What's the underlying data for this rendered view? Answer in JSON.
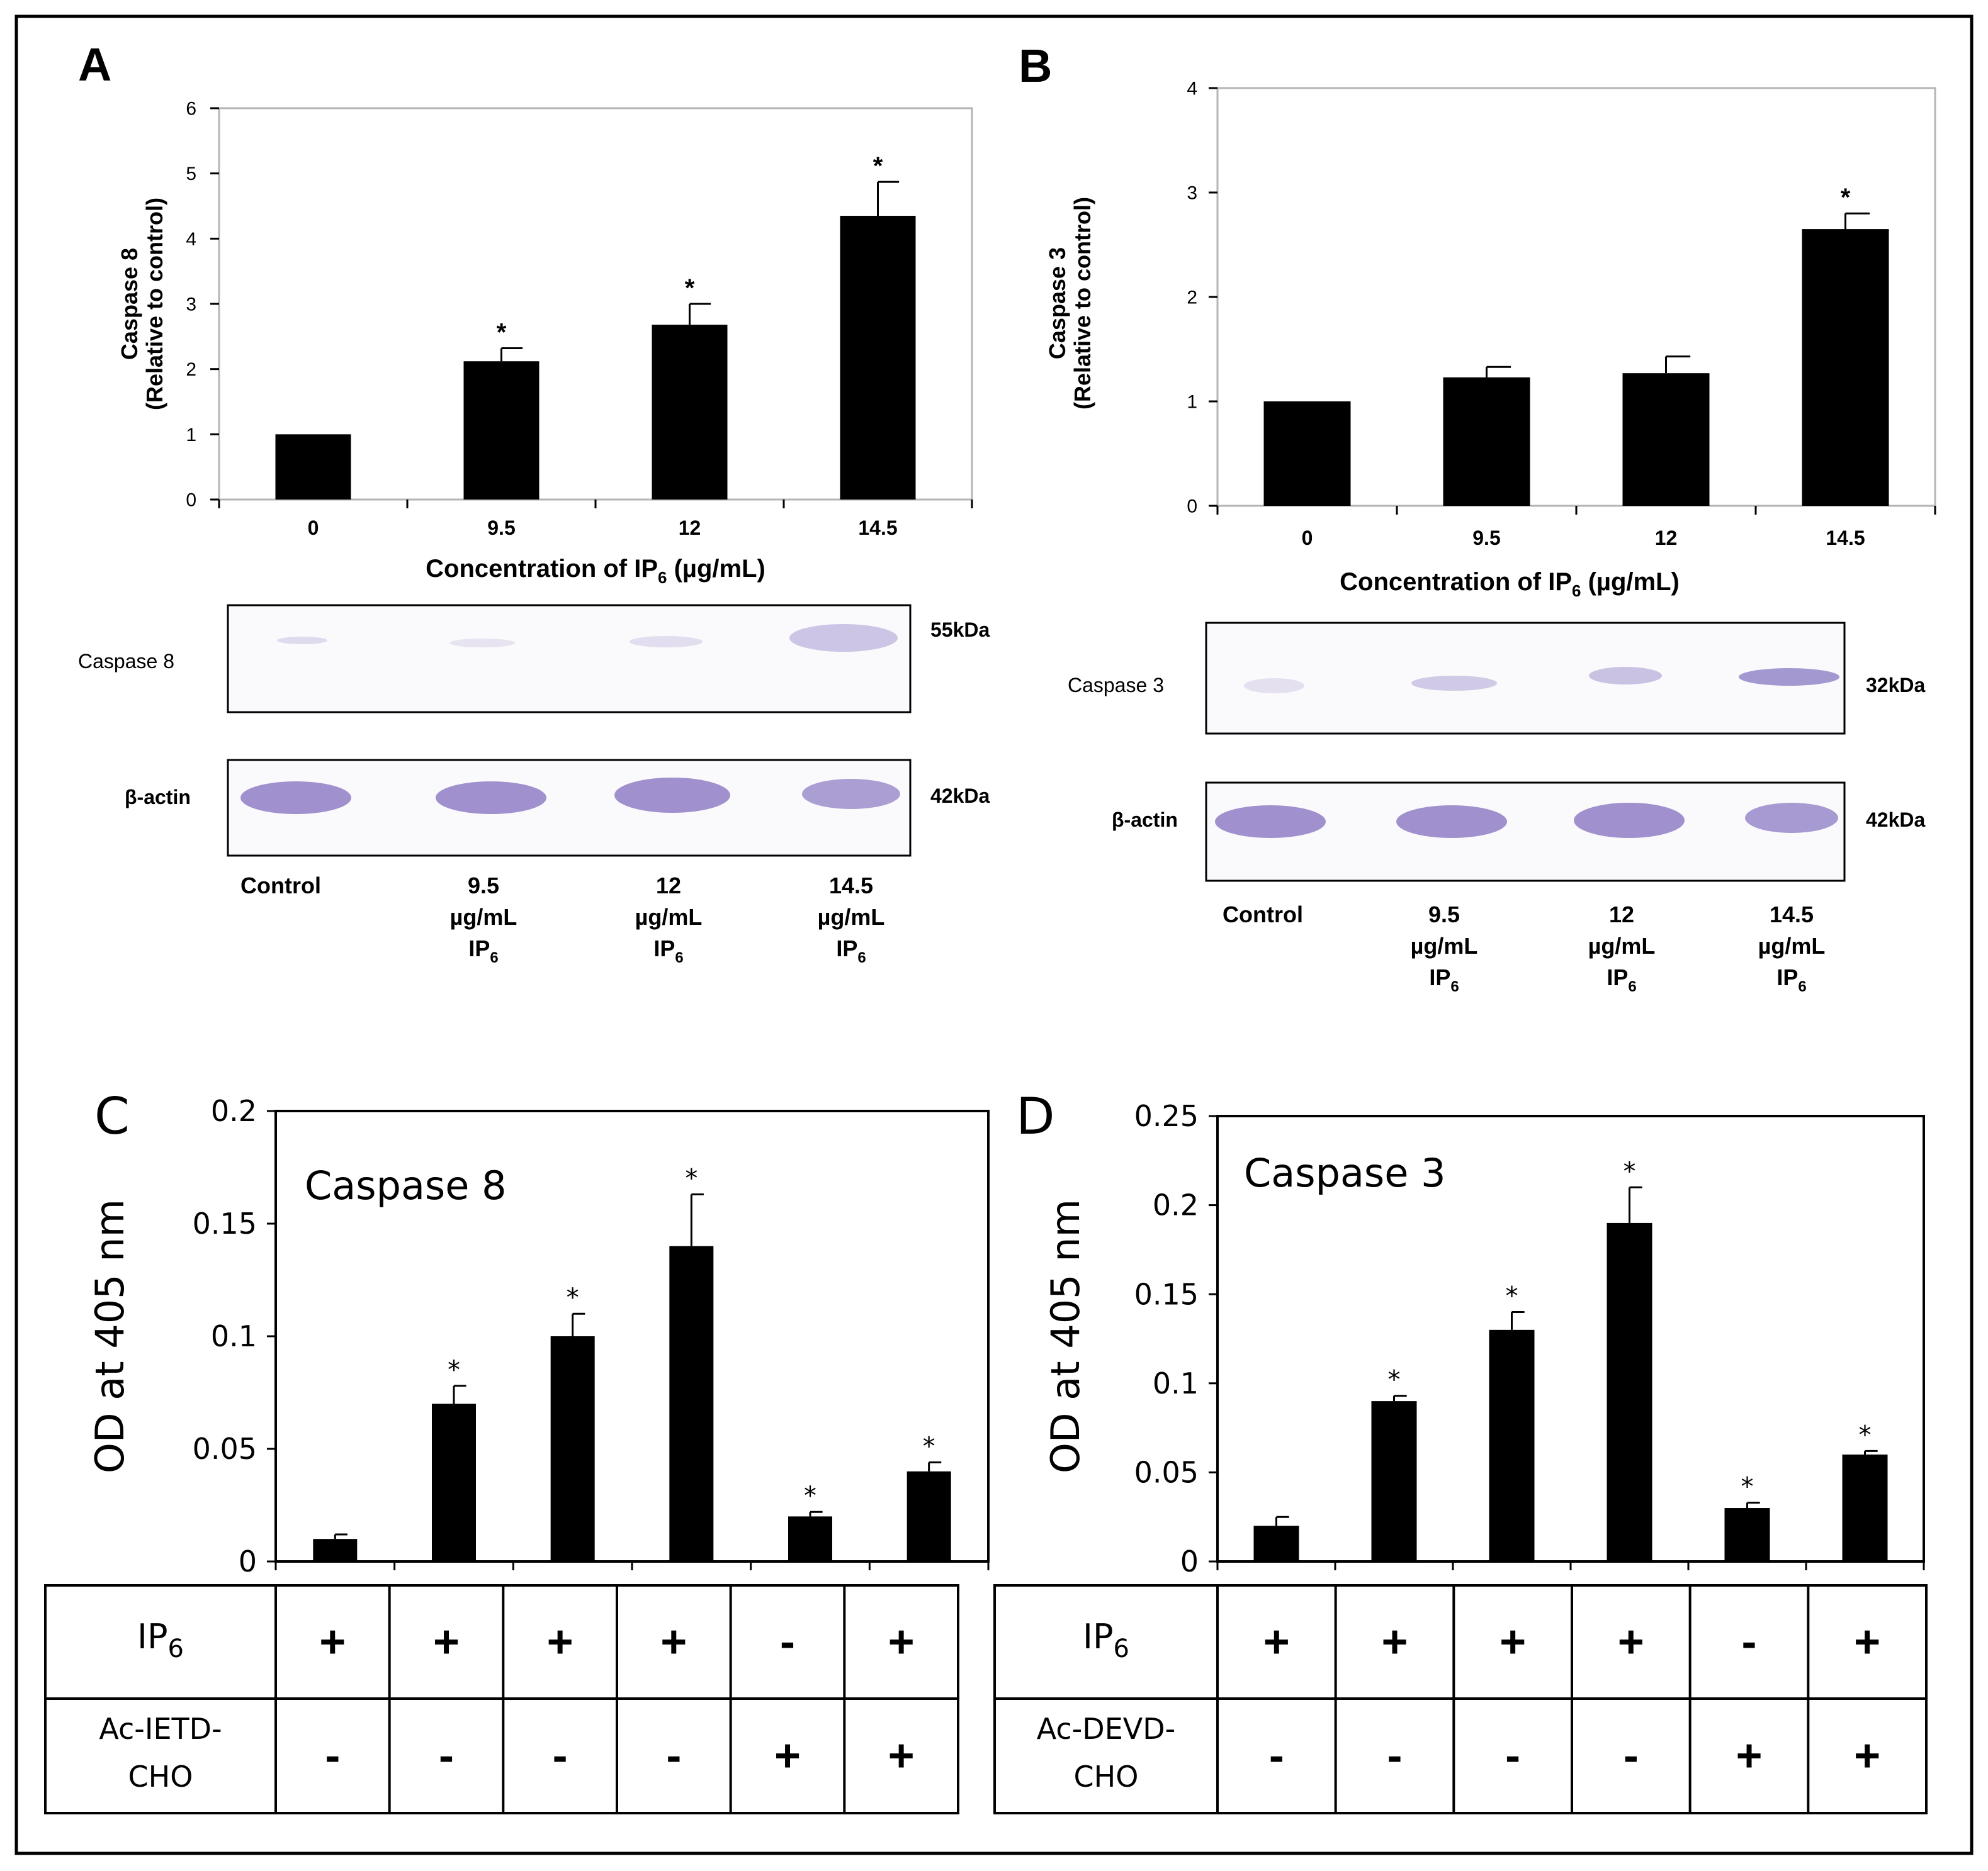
{
  "chart_data": [
    {
      "panel": "A",
      "type": "bar",
      "title": "",
      "xlabel": "Concentration of IP6 (µg/mL)",
      "ylabel": "Caspase 8",
      "ylabel2": "(Relative to control)",
      "categories": [
        "0",
        "9.5",
        "12",
        "14.5"
      ],
      "values": [
        1.0,
        2.12,
        2.68,
        4.35
      ],
      "errors": [
        0,
        0.2,
        0.32,
        0.52
      ],
      "significant": [
        false,
        true,
        true,
        true
      ],
      "ylim": [
        0,
        6
      ],
      "yticks": [
        "0",
        "1",
        "2",
        "3",
        "4",
        "5",
        "6"
      ],
      "blot": {
        "target_label": "Caspase 8",
        "target_kda": "55kDa",
        "control_label": "β-actin",
        "control_kda": "42kDa",
        "lanes": [
          {
            "l1": "Control",
            "l2": "",
            "l3": ""
          },
          {
            "l1": "9.5",
            "l2": "µg/mL",
            "l3": "IP6"
          },
          {
            "l1": "12",
            "l2": "µg/mL",
            "l3": "IP6"
          },
          {
            "l1": "14.5",
            "l2": "µg/mL",
            "l3": "IP6"
          }
        ]
      }
    },
    {
      "panel": "B",
      "type": "bar",
      "title": "",
      "xlabel": "Concentration of IP6 (µg/mL)",
      "ylabel": "Caspase 3",
      "ylabel2": "(Relative to control)",
      "categories": [
        "0",
        "9.5",
        "12",
        "14.5"
      ],
      "values": [
        1.0,
        1.23,
        1.27,
        2.65
      ],
      "errors": [
        0,
        0.1,
        0.16,
        0.15
      ],
      "significant": [
        false,
        false,
        false,
        true
      ],
      "ylim": [
        0,
        4
      ],
      "yticks": [
        "0",
        "1",
        "2",
        "3",
        "4"
      ],
      "blot": {
        "target_label": "Caspase 3",
        "target_kda": "32kDa",
        "control_label": "β-actin",
        "control_kda": "42kDa",
        "lanes": [
          {
            "l1": "Control",
            "l2": "",
            "l3": ""
          },
          {
            "l1": "9.5",
            "l2": "µg/mL",
            "l3": "IP6"
          },
          {
            "l1": "12",
            "l2": "µg/mL",
            "l3": "IP6"
          },
          {
            "l1": "14.5",
            "l2": "µg/mL",
            "l3": "IP6"
          }
        ]
      }
    },
    {
      "panel": "C",
      "type": "bar",
      "title": "Caspase 8",
      "xlabel": "",
      "ylabel": "OD at 405 nm",
      "values": [
        0.01,
        0.07,
        0.1,
        0.14,
        0.02,
        0.04
      ],
      "errors": [
        0.002,
        0.008,
        0.01,
        0.023,
        0.002,
        0.004
      ],
      "significant": [
        false,
        true,
        true,
        true,
        true,
        true
      ],
      "ylim": [
        0,
        0.2
      ],
      "yticks": [
        "0",
        "0.05",
        "0.1",
        "0.15",
        "0.2"
      ],
      "table": {
        "row1_label": "IP6",
        "row2_label_l1": "Ac-IETD-",
        "row2_label_l2": "CHO",
        "row1": [
          "+",
          "+",
          "+",
          "+",
          "-",
          "+"
        ],
        "row2": [
          "-",
          "-",
          "-",
          "-",
          "+",
          "+"
        ]
      }
    },
    {
      "panel": "D",
      "type": "bar",
      "title": "Caspase 3",
      "xlabel": "",
      "ylabel": "OD at 405 nm",
      "values": [
        0.02,
        0.09,
        0.13,
        0.19,
        0.03,
        0.06
      ],
      "errors": [
        0.005,
        0.003,
        0.01,
        0.02,
        0.003,
        0.002
      ],
      "significant": [
        false,
        true,
        true,
        true,
        true,
        true
      ],
      "ylim": [
        0,
        0.25
      ],
      "yticks": [
        "0",
        "0.05",
        "0.1",
        "0.15",
        "0.2",
        "0.25"
      ],
      "table": {
        "row1_label": "IP6",
        "row2_label_l1": "Ac-DEVD-",
        "row2_label_l2": "CHO",
        "row1": [
          "+",
          "+",
          "+",
          "+",
          "-",
          "+"
        ],
        "row2": [
          "-",
          "-",
          "-",
          "-",
          "+",
          "+"
        ]
      }
    }
  ],
  "labels": {
    "panel_a": "A",
    "panel_b": "B",
    "panel_c": "C",
    "panel_d": "D",
    "star": "*",
    "xlabel_prefix": "Concentration of IP",
    "xlabel_sub": "6",
    "xlabel_suffix": " (µg/mL)",
    "ip_base": "IP",
    "ip_sub": "6"
  },
  "colors": {
    "bar": "#000000",
    "blot_band": "#8f7fc6",
    "blot_bg": "#faf9fb",
    "frame": "#000000"
  }
}
